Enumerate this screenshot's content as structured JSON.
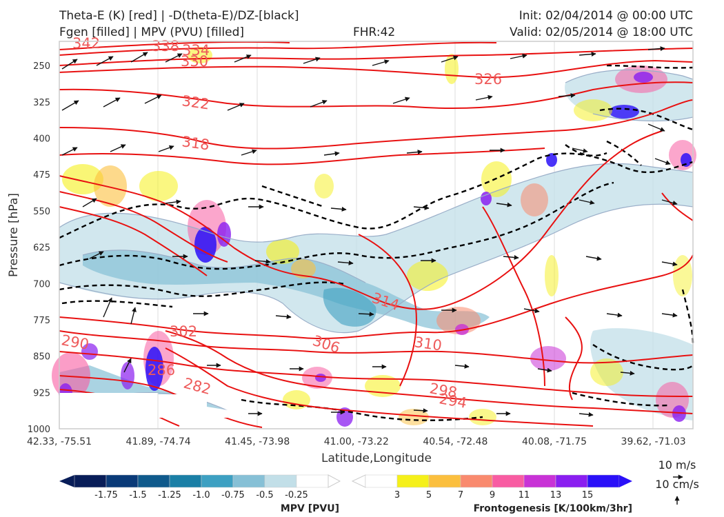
{
  "header": {
    "title_left_1": "Theta-E (K) [red] | -D(theta-E)/DZ-[black]",
    "title_left_2": "Fgen [filled] | MPV (PVU) [filled]",
    "title_center": "FHR:42",
    "title_right_1": "Init: 02/04/2014 @ 00:00 UTC",
    "title_right_2": "Valid: 02/05/2014 @ 18:00 UTC"
  },
  "colors": {
    "theta_e": "#e81010",
    "stability": "#000000",
    "frame": "#cccccc"
  },
  "chart_data": {
    "type": "cross-section",
    "xlabel": "Latitude,Longitude",
    "ylabel": "Pressure [hPa]",
    "x_ticks": [
      "42.33, -75.51",
      "41.89, -74.74",
      "41.45, -73.98",
      "41.00, -73.22",
      "40.54, -72.48",
      "40.08, -71.75",
      "39.62, -71.03"
    ],
    "y_ticks": [
      250,
      325,
      400,
      475,
      550,
      625,
      700,
      775,
      850,
      925,
      1000
    ],
    "ylim": [
      1000,
      200
    ],
    "y_reversed": true,
    "theta_e_contour_labels": [
      "342",
      "338",
      "334",
      "330",
      "326",
      "322",
      "318",
      "314",
      "310",
      "306",
      "302",
      "298",
      "294",
      "290",
      "286",
      "282"
    ],
    "mpv_colorbar": {
      "title": "MPV [PVU]",
      "tick_labels": [
        "-1.75",
        "-1.5",
        "-1.25",
        "-1.0",
        "-0.75",
        "-0.5",
        "-0.25"
      ],
      "colors": [
        "#081d58",
        "#0a3a78",
        "#0f5a8c",
        "#1a7fa6",
        "#3da0c2",
        "#86c0d6",
        "#c2dfe8",
        "#ffffff"
      ]
    },
    "fgen_colorbar": {
      "title": "Frontogenesis [K/100km/3hr]",
      "tick_labels": [
        "3",
        "5",
        "7",
        "9",
        "11",
        "13",
        "15"
      ],
      "colors": [
        "#ffffff",
        "#f5f01a",
        "#fbbf3e",
        "#f98a6e",
        "#f85ca2",
        "#c832d6",
        "#8a1ef0",
        "#2a10f8"
      ]
    },
    "wind_reference": {
      "horizontal_label": "10 m/s",
      "vertical_label": "10 cm/s"
    }
  }
}
